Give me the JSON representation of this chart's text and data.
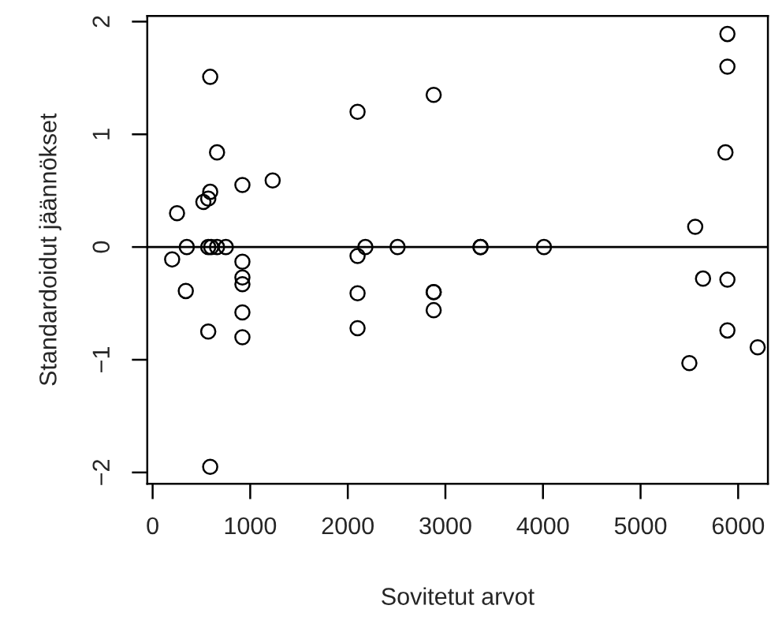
{
  "chart_data": {
    "type": "scatter",
    "xlabel": "Sovitetut arvot",
    "ylabel": "Standardoidut jäännökset",
    "x": [
      590,
      660,
      590,
      570,
      520,
      920,
      1230,
      250,
      200,
      350,
      570,
      600,
      660,
      750,
      340,
      920,
      920,
      920,
      920,
      920,
      570,
      590,
      2100,
      2100,
      2180,
      2510,
      2100,
      2100,
      2880,
      2880,
      2880,
      2880,
      3360,
      3360,
      4010,
      5890,
      5890,
      5870,
      5560,
      5640,
      5890,
      5890,
      6200,
      5500
    ],
    "series": [
      {
        "color": "#000000",
        "values": [
          1.51,
          0.84,
          0.49,
          0.43,
          0.4,
          0.55,
          0.59,
          0.3,
          -0.11,
          0,
          0,
          0,
          0,
          0,
          -0.39,
          -0.13,
          -0.27,
          -0.33,
          -0.58,
          -0.8,
          -0.75,
          -1.95,
          1.2,
          -0.08,
          0,
          0,
          -0.41,
          -0.72,
          1.35,
          -0.4,
          -0.4,
          -0.56,
          0,
          0,
          0,
          1.89,
          1.6,
          0.84,
          0.18,
          -0.28,
          -0.29,
          -0.74,
          -0.89,
          -1.03
        ]
      }
    ],
    "marker": "circle",
    "xlim": [
      -55,
      6305
    ],
    "ylim": [
      -2.1,
      2.05
    ],
    "xticks": [
      0,
      1000,
      2000,
      3000,
      4000,
      5000,
      6000
    ],
    "yticks": [
      {
        "value": -2,
        "label": "−2"
      },
      {
        "value": -1,
        "label": "−1"
      },
      0,
      1,
      2
    ],
    "ref_lines": [
      {
        "axis": "y",
        "value": 0,
        "color": "#000000"
      }
    ]
  }
}
